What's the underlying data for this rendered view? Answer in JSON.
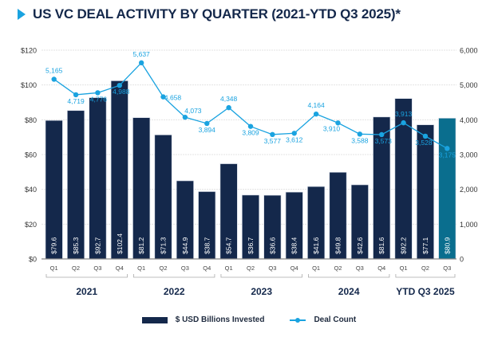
{
  "title": "US VC DEAL ACTIVITY BY QUARTER (2021-YTD Q3 2025)*",
  "colors": {
    "bar": "#14284b",
    "bar_highlight": "#0a6e8e",
    "line": "#1aa3e0",
    "title": "#14284b",
    "grid": "#e3e3e3"
  },
  "chart_data": {
    "type": "bar",
    "title": "US VC DEAL ACTIVITY BY QUARTER (2021-YTD Q3 2025)*",
    "xlabel": "",
    "ylabel": "",
    "y2label": "",
    "categories": [
      "Q1",
      "Q2",
      "Q3",
      "Q4",
      "Q1",
      "Q2",
      "Q3",
      "Q4",
      "Q1",
      "Q2",
      "Q3",
      "Q4",
      "Q1",
      "Q2",
      "Q3",
      "Q4",
      "Q1",
      "Q2",
      "Q3"
    ],
    "groups": [
      {
        "label": "2021",
        "count": 4
      },
      {
        "label": "2022",
        "count": 4
      },
      {
        "label": "2023",
        "count": 4
      },
      {
        "label": "2024",
        "count": 4
      },
      {
        "label": "YTD Q3 2025",
        "count": 3
      }
    ],
    "series": [
      {
        "name": "$ USD Billions Invested",
        "type": "bar",
        "axis": "left",
        "values": [
          79.6,
          85.3,
          92.7,
          102.4,
          81.2,
          71.3,
          44.9,
          38.7,
          54.7,
          36.7,
          36.6,
          38.4,
          41.6,
          49.8,
          42.6,
          81.6,
          92.2,
          77.1,
          80.9
        ],
        "labels": [
          "$79.6",
          "$85.3",
          "$92.7",
          "$102.4",
          "$81.2",
          "$71.3",
          "$44.9",
          "$38.7",
          "$54.7",
          "$36.7",
          "$36.6",
          "$38.4",
          "$41.6",
          "$49.8",
          "$42.6",
          "$81.6",
          "$92.2",
          "$77.1",
          "$80.9"
        ],
        "highlight_index": 18
      },
      {
        "name": "Deal Count",
        "type": "line",
        "axis": "right",
        "values": [
          5165,
          4719,
          4776,
          4988,
          5637,
          4658,
          4073,
          3894,
          4348,
          3809,
          3577,
          3612,
          4164,
          3910,
          3588,
          3573,
          3913,
          3528,
          3175
        ],
        "labels": [
          "5,165",
          "4,719",
          "4,776",
          "4,988",
          "5,637",
          "4,658",
          "4,073",
          "3,894",
          "4,348",
          "3,809",
          "3,577",
          "3,612",
          "4,164",
          "3,910",
          "3,588",
          "3,573",
          "3,913",
          "3,528",
          "3,175"
        ]
      }
    ],
    "ylim": [
      0,
      120
    ],
    "y2lim": [
      0,
      6000
    ],
    "yticks": [
      "$0",
      "$20",
      "$40",
      "$60",
      "$80",
      "$100",
      "$120"
    ],
    "yticks_values": [
      0,
      20,
      40,
      60,
      80,
      100,
      120
    ],
    "y2ticks": [
      "0",
      "1,000",
      "2,000",
      "3,000",
      "4,000",
      "5,000",
      "6,000"
    ],
    "y2ticks_values": [
      0,
      1000,
      2000,
      3000,
      4000,
      5000,
      6000
    ],
    "grid": true,
    "legend": {
      "position": "bottom",
      "entries": [
        "$ USD Billions Invested",
        "Deal Count"
      ]
    }
  }
}
